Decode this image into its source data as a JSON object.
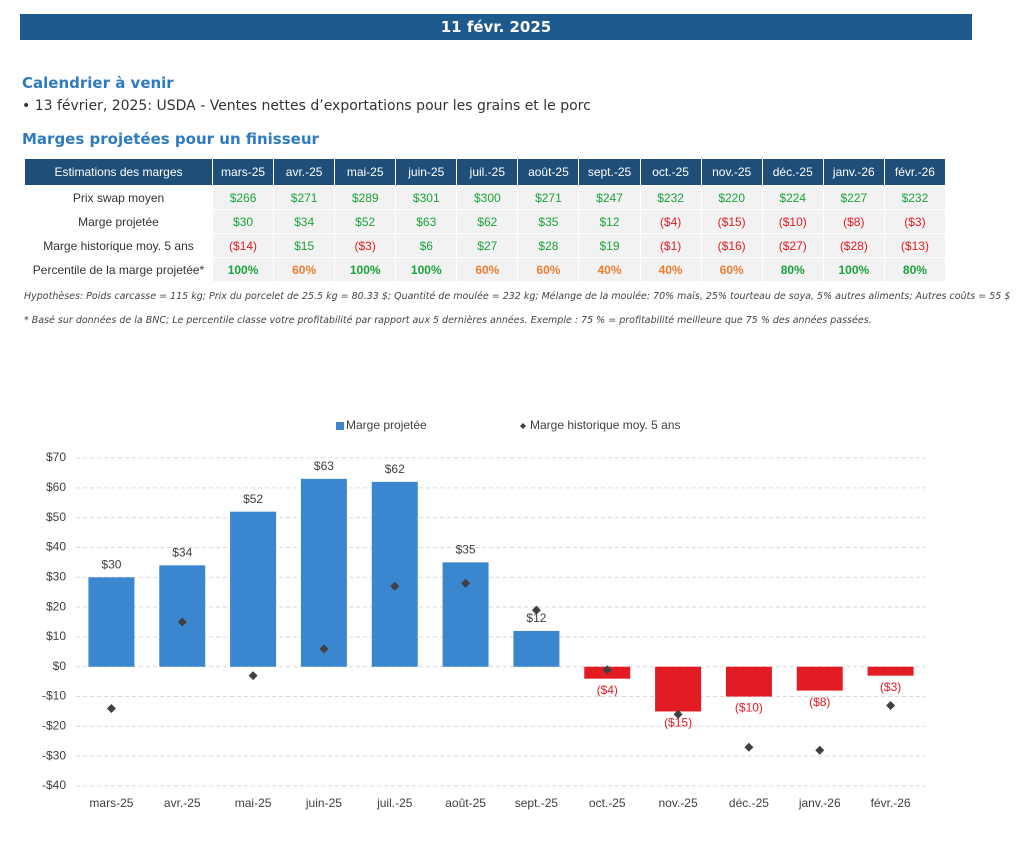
{
  "header": {
    "date": "11 févr. 2025"
  },
  "calendar": {
    "title": "Calendrier à venir",
    "items": [
      "• 13 février, 2025: USDA - Ventes nettes d’exportations pour les grains et le porc"
    ]
  },
  "table": {
    "title": "Marges projetées pour un finisseur",
    "header": [
      "Estimations des marges",
      "mars-25",
      "avr.-25",
      "mai-25",
      "juin-25",
      "juil.-25",
      "août-25",
      "sept.-25",
      "oct.-25",
      "nov.-25",
      "déc.-25",
      "janv.-26",
      "févr.-26"
    ],
    "rows": [
      [
        "Prix swap moyen",
        "$266",
        "$271",
        "$289",
        "$301",
        "$300",
        "$271",
        "$247",
        "$232",
        "$220",
        "$224",
        "$227",
        "$232"
      ],
      [
        "Marge projetée",
        "$30",
        "$34",
        "$52",
        "$63",
        "$62",
        "$35",
        "$12",
        "($4)",
        "($15)",
        "($10)",
        "($8)",
        "($3)"
      ],
      [
        "Marge historique moy. 5 ans",
        "($14)",
        "$15",
        "($3)",
        "$6",
        "$27",
        "$28",
        "$19",
        "($1)",
        "($16)",
        "($27)",
        "($28)",
        "($13)"
      ],
      [
        "Percentile de la marge projetée*",
        "100%",
        "60%",
        "100%",
        "100%",
        "60%",
        "60%",
        "40%",
        "40%",
        "60%",
        "80%",
        "100%",
        "80%"
      ]
    ]
  },
  "notes": [
    "Hypothèses: Poids carcasse = 115 kg; Prix du porcelet de 25.5 kg = 80.33 $; Quantité de moulée = 232 kg; Mélange de la moulée: 70% maïs, 25% tourteau de soya, 5% autres aliments; Autres coûts = 55 $",
    "* Basé sur données de la BNC; Le percentile classe votre profitabilité par rapport aux 5 dernières années. Exemple : 75 % = profitabilité meilleure que 75 % des années passées."
  ],
  "chart_data": {
    "type": "bar",
    "categories": [
      "mars-25",
      "avr.-25",
      "mai-25",
      "juin-25",
      "juil.-25",
      "août-25",
      "sept.-25",
      "oct.-25",
      "nov.-25",
      "déc.-25",
      "janv.-26",
      "févr.-26"
    ],
    "series": [
      {
        "name": "Marge projetée",
        "type": "bar",
        "color": "#3a87d0",
        "negative_color": "#e31b23",
        "values": [
          30,
          34,
          52,
          63,
          62,
          35,
          12,
          -4,
          -15,
          -10,
          -8,
          -3
        ],
        "value_labels": [
          "$30",
          "$34",
          "$52",
          "$63",
          "$62",
          "$35",
          "$12",
          "($4)",
          "($15)",
          "($10)",
          "($8)",
          "($3)"
        ]
      },
      {
        "name": "Marge historique moy. 5 ans",
        "type": "scatter",
        "color": "#404040",
        "values": [
          -14,
          15,
          -3,
          6,
          27,
          28,
          19,
          -1,
          -16,
          -27,
          -28,
          -13
        ]
      }
    ],
    "ylim": [
      -40,
      70
    ],
    "yticks": [
      {
        "value": -40,
        "label": "-$40"
      },
      {
        "value": -30,
        "label": "-$30"
      },
      {
        "value": -20,
        "label": "-$20"
      },
      {
        "value": -10,
        "label": "-$10"
      },
      {
        "value": 0,
        "label": "$0"
      },
      {
        "value": 10,
        "label": "$10"
      },
      {
        "value": 20,
        "label": "$20"
      },
      {
        "value": 30,
        "label": "$30"
      },
      {
        "value": 40,
        "label": "$40"
      },
      {
        "value": 50,
        "label": "$50"
      },
      {
        "value": 60,
        "label": "$60"
      },
      {
        "value": 70,
        "label": "$70"
      }
    ],
    "grid": true,
    "legend": "top"
  }
}
